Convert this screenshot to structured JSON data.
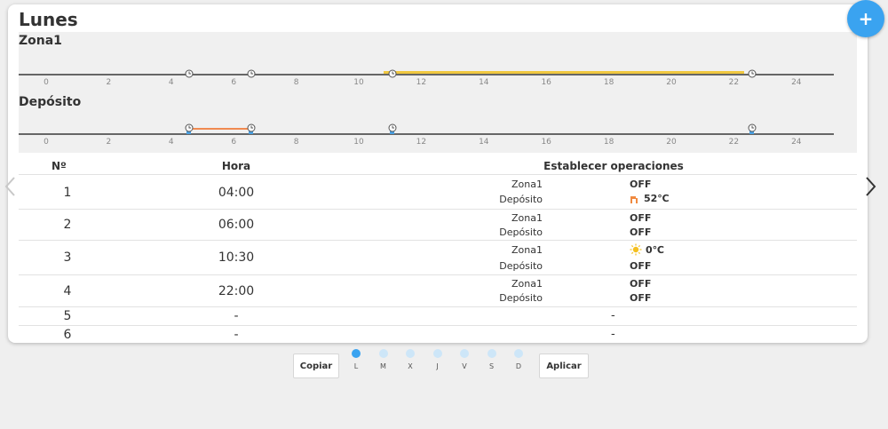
{
  "day_title": "Lunes",
  "zones": [
    {
      "name": "Zona1"
    },
    {
      "name": "Depósito"
    }
  ],
  "axis_ticks": [
    "0",
    "2",
    "4",
    "6",
    "8",
    "10",
    "12",
    "14",
    "16",
    "18",
    "20",
    "22",
    "24"
  ],
  "table": {
    "headers": {
      "num": "Nº",
      "hora": "Hora",
      "ops": "Establecer operaciones"
    },
    "rows": [
      {
        "num": "1",
        "hora": "04:00",
        "zona1_label": "Zona1",
        "zona1_value": "OFF",
        "deposito_label": "Depósito",
        "deposito_value": "52℃",
        "deposito_icon": "heater-icon"
      },
      {
        "num": "2",
        "hora": "06:00",
        "zona1_label": "Zona1",
        "zona1_value": "OFF",
        "deposito_label": "Depósito",
        "deposito_value": "OFF"
      },
      {
        "num": "3",
        "hora": "10:30",
        "zona1_label": "Zona1",
        "zona1_value": "0℃",
        "zona1_icon": "sun-icon",
        "deposito_label": "Depósito",
        "deposito_value": "OFF"
      },
      {
        "num": "4",
        "hora": "22:00",
        "zona1_label": "Zona1",
        "zona1_value": "OFF",
        "deposito_label": "Depósito",
        "deposito_value": "OFF"
      },
      {
        "num": "5",
        "hora": "-",
        "ops": "-"
      },
      {
        "num": "6",
        "hora": "-",
        "ops": "-"
      }
    ]
  },
  "buttons": {
    "copy": "Copiar",
    "apply": "Aplicar",
    "add": "+"
  },
  "days": [
    {
      "label": "L",
      "active": true
    },
    {
      "label": "M",
      "active": false
    },
    {
      "label": "X",
      "active": false
    },
    {
      "label": "J",
      "active": false
    },
    {
      "label": "V",
      "active": false
    },
    {
      "label": "S",
      "active": false
    },
    {
      "label": "D",
      "active": false
    }
  ],
  "colors": {
    "accent": "#3aa3f0",
    "zona1_bar": "#f0c840",
    "deposito_bar": "#f08a50",
    "marker": "#4a9fe0"
  }
}
